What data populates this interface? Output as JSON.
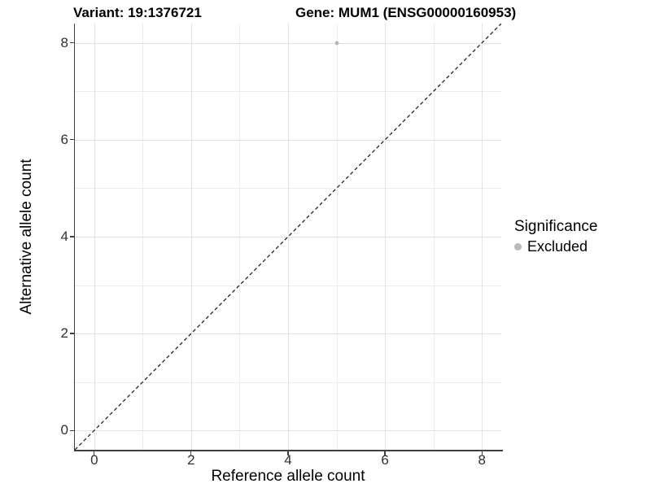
{
  "chart_data": {
    "type": "scatter",
    "titles": {
      "variant": "Variant: 19:1376721",
      "gene": "Gene: MUM1 (ENSG00000160953)"
    },
    "xlabel": "Reference allele count",
    "ylabel": "Alternative allele count",
    "xlim": [
      -0.4,
      8.4
    ],
    "ylim": [
      -0.4,
      8.4
    ],
    "x_major_ticks": [
      0,
      2,
      4,
      6,
      8
    ],
    "y_major_ticks": [
      0,
      2,
      4,
      6,
      8
    ],
    "x_minor_gridlines": [
      1,
      3,
      5,
      7
    ],
    "y_minor_gridlines": [
      1,
      3,
      5,
      7
    ],
    "grid": "major+minor",
    "series": [
      {
        "name": "Excluded",
        "color": "#b9b9b9",
        "points": [
          {
            "x": 5,
            "y": 8
          }
        ]
      }
    ],
    "reference_line": {
      "type": "identity",
      "slope": 1,
      "intercept": 0,
      "style": "dashed",
      "color": "#161616"
    },
    "legend": {
      "title": "Significance",
      "position": "right",
      "entries": [
        {
          "label": "Excluded",
          "color": "#b9b9b9"
        }
      ]
    }
  },
  "palette": {
    "background": "#ffffff",
    "grid_major": "#e2e2e2",
    "grid_minor": "#ededed",
    "axis_line": "#3f3f3f",
    "tick_text": "#303030",
    "excluded_gray": "#b9b9b9"
  }
}
